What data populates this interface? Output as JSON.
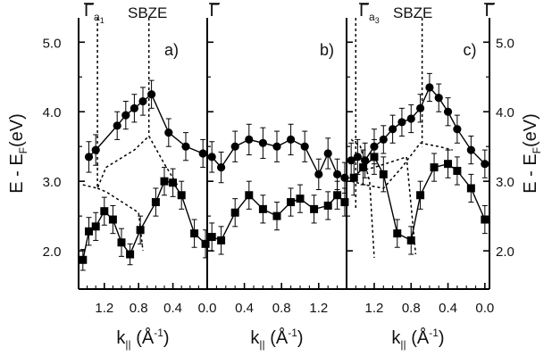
{
  "chart_data": [
    {
      "panel": "a)",
      "type": "scatter",
      "xlabel": "k",
      "xlabel_sub": "||",
      "xlabel_unit": "(Å",
      "xlabel_sup": "-1",
      "xlabel_close": ")",
      "xlim": [
        1.5,
        0.0
      ],
      "x_reversed": true,
      "xticks": [
        1.2,
        0.8,
        0.4
      ],
      "xtick_labels": [
        "1.2",
        "0.8",
        "0.4"
      ],
      "ylabel": "E - E",
      "ylabel_sub": "F",
      "ylabel_unit": "(eV)",
      "ylim": [
        1.45,
        5.35
      ],
      "yticks": [
        2.0,
        3.0,
        4.0,
        5.0
      ],
      "ytick_labels": [
        "2.0",
        "3.0",
        "4.0",
        "5.0"
      ],
      "top_labels": {
        "gamma_bar": "Γ",
        "gamma_sub": "a",
        "gamma_sub_index": "1",
        "sbze": "SBZE"
      },
      "series": [
        {
          "marker": "circle",
          "x": [
            1.38,
            1.3,
            1.05,
            0.95,
            0.85,
            0.75,
            0.65,
            0.45,
            0.25,
            0.05
          ],
          "y": [
            3.35,
            3.45,
            3.8,
            3.95,
            4.05,
            4.15,
            4.25,
            3.7,
            3.5,
            3.4
          ],
          "err": [
            0.22,
            0.22,
            0.2,
            0.2,
            0.2,
            0.2,
            0.2,
            0.2,
            0.2,
            0.2
          ]
        },
        {
          "marker": "square",
          "x": [
            1.45,
            1.38,
            1.3,
            1.2,
            1.1,
            1.0,
            0.9,
            0.78,
            0.6,
            0.5,
            0.4,
            0.3,
            0.15,
            0.02
          ],
          "y": [
            1.87,
            2.28,
            2.35,
            2.57,
            2.45,
            2.12,
            1.95,
            2.3,
            2.7,
            3.0,
            2.98,
            2.8,
            2.25,
            2.1
          ],
          "err": [
            0.15,
            0.2,
            0.2,
            0.2,
            0.2,
            0.2,
            0.15,
            0.2,
            0.2,
            0.2,
            0.2,
            0.2,
            0.2,
            0.2
          ]
        }
      ],
      "dashed": [
        {
          "x": [
            1.28,
            1.28
          ],
          "y": [
            5.35,
            2.9
          ]
        },
        {
          "x": [
            0.68,
            0.68
          ],
          "y": [
            5.35,
            3.65
          ]
        },
        {
          "x": [
            1.45,
            1.28,
            1.18,
            0.85,
            0.68,
            0.5,
            0.35
          ],
          "y": [
            2.95,
            2.9,
            3.2,
            3.45,
            3.65,
            3.25,
            2.95
          ]
        },
        {
          "x": [
            1.28,
            1.18,
            0.8,
            0.75
          ],
          "y": [
            2.9,
            2.85,
            2.55,
            2.0
          ]
        }
      ]
    },
    {
      "panel": "b)",
      "type": "scatter",
      "xlabel": "k",
      "xlabel_sub": "||",
      "xlabel_unit": "(Å",
      "xlabel_sup": "-1",
      "xlabel_close": ")",
      "xlim": [
        0.0,
        1.5
      ],
      "x_reversed": false,
      "xticks": [
        0.0,
        0.4,
        0.8,
        1.2
      ],
      "xtick_labels": [
        "0.0",
        "0.4",
        "0.8",
        "1.2"
      ],
      "ylim": [
        1.45,
        5.35
      ],
      "top_labels": {
        "gamma_bar": "Γ"
      },
      "series": [
        {
          "marker": "circle",
          "x": [
            0.05,
            0.15,
            0.3,
            0.45,
            0.6,
            0.75,
            0.9,
            1.05,
            1.2,
            1.3,
            1.4,
            1.48
          ],
          "y": [
            3.35,
            3.2,
            3.5,
            3.6,
            3.55,
            3.5,
            3.6,
            3.5,
            3.1,
            3.4,
            3.1,
            3.05
          ],
          "err": [
            0.22,
            0.22,
            0.22,
            0.22,
            0.22,
            0.22,
            0.22,
            0.22,
            0.22,
            0.22,
            0.22,
            0.22
          ]
        },
        {
          "marker": "square",
          "x": [
            0.05,
            0.15,
            0.3,
            0.45,
            0.6,
            0.75,
            0.9,
            1.0,
            1.15,
            1.3,
            1.4,
            1.48
          ],
          "y": [
            2.2,
            2.15,
            2.55,
            2.8,
            2.6,
            2.5,
            2.7,
            2.75,
            2.6,
            2.65,
            2.8,
            2.7
          ],
          "err": [
            0.2,
            0.2,
            0.2,
            0.2,
            0.2,
            0.2,
            0.2,
            0.2,
            0.2,
            0.2,
            0.2,
            0.2
          ]
        }
      ],
      "dashed": []
    },
    {
      "panel": "c)",
      "type": "scatter",
      "xlabel": "k",
      "xlabel_sub": "||",
      "xlabel_unit": "(Å",
      "xlabel_sup": "-1",
      "xlabel_close": ")",
      "xlim": [
        1.5,
        -0.05
      ],
      "x_reversed": true,
      "xticks": [
        1.2,
        0.8,
        0.4,
        0.0
      ],
      "xtick_labels": [
        "1.2",
        "0.8",
        "0.4",
        "0.0"
      ],
      "ylabel": "E - E",
      "ylabel_sub": "F",
      "ylabel_unit": "(eV)",
      "ylim": [
        1.45,
        5.35
      ],
      "yticks": [
        2.0,
        3.0,
        4.0,
        5.0
      ],
      "ytick_labels": [
        "2.0",
        "3.0",
        "4.0",
        "5.0"
      ],
      "top_labels": {
        "gamma_bar": "Γ",
        "gamma_sub": "a",
        "gamma_sub_index": "3",
        "sbze": "SBZE",
        "gamma_bar_right": "Γ"
      },
      "series": [
        {
          "marker": "circle",
          "x": [
            1.45,
            1.38,
            1.3,
            1.2,
            1.1,
            1.0,
            0.9,
            0.8,
            0.7,
            0.6,
            0.5,
            0.4,
            0.3,
            0.15,
            0.0
          ],
          "y": [
            3.3,
            3.35,
            3.3,
            3.5,
            3.6,
            3.75,
            3.85,
            3.9,
            4.05,
            4.35,
            4.2,
            4.0,
            3.75,
            3.45,
            3.25
          ],
          "err": [
            0.25,
            0.25,
            0.25,
            0.25,
            0.2,
            0.2,
            0.2,
            0.2,
            0.2,
            0.2,
            0.2,
            0.2,
            0.2,
            0.2,
            0.2
          ]
        },
        {
          "marker": "square",
          "x": [
            1.42,
            1.32,
            1.2,
            1.1,
            0.95,
            0.8,
            0.7,
            0.55,
            0.4,
            0.3,
            0.15,
            0.0
          ],
          "y": [
            3.05,
            3.2,
            3.35,
            3.1,
            2.25,
            2.15,
            2.8,
            3.2,
            3.25,
            3.15,
            2.9,
            2.45
          ],
          "err": [
            0.25,
            0.25,
            0.25,
            0.25,
            0.2,
            0.2,
            0.2,
            0.2,
            0.2,
            0.2,
            0.2,
            0.2
          ]
        }
      ],
      "dashed": [
        {
          "x": [
            1.4,
            1.4
          ],
          "y": [
            5.35,
            2.6
          ]
        },
        {
          "x": [
            0.68,
            0.68
          ],
          "y": [
            5.35,
            3.5
          ]
        },
        {
          "x": [
            1.45,
            1.35,
            1.25,
            1.2
          ],
          "y": [
            3.6,
            3.5,
            3.0,
            1.9
          ]
        },
        {
          "x": [
            1.45,
            1.3,
            1.1,
            0.9,
            0.7,
            0.5,
            0.35
          ],
          "y": [
            3.0,
            2.95,
            2.9,
            3.2,
            3.55,
            3.5,
            3.45
          ]
        },
        {
          "x": [
            1.35,
            1.2,
            0.85,
            0.75
          ],
          "y": [
            3.15,
            3.2,
            3.35,
            1.95
          ]
        }
      ]
    }
  ]
}
